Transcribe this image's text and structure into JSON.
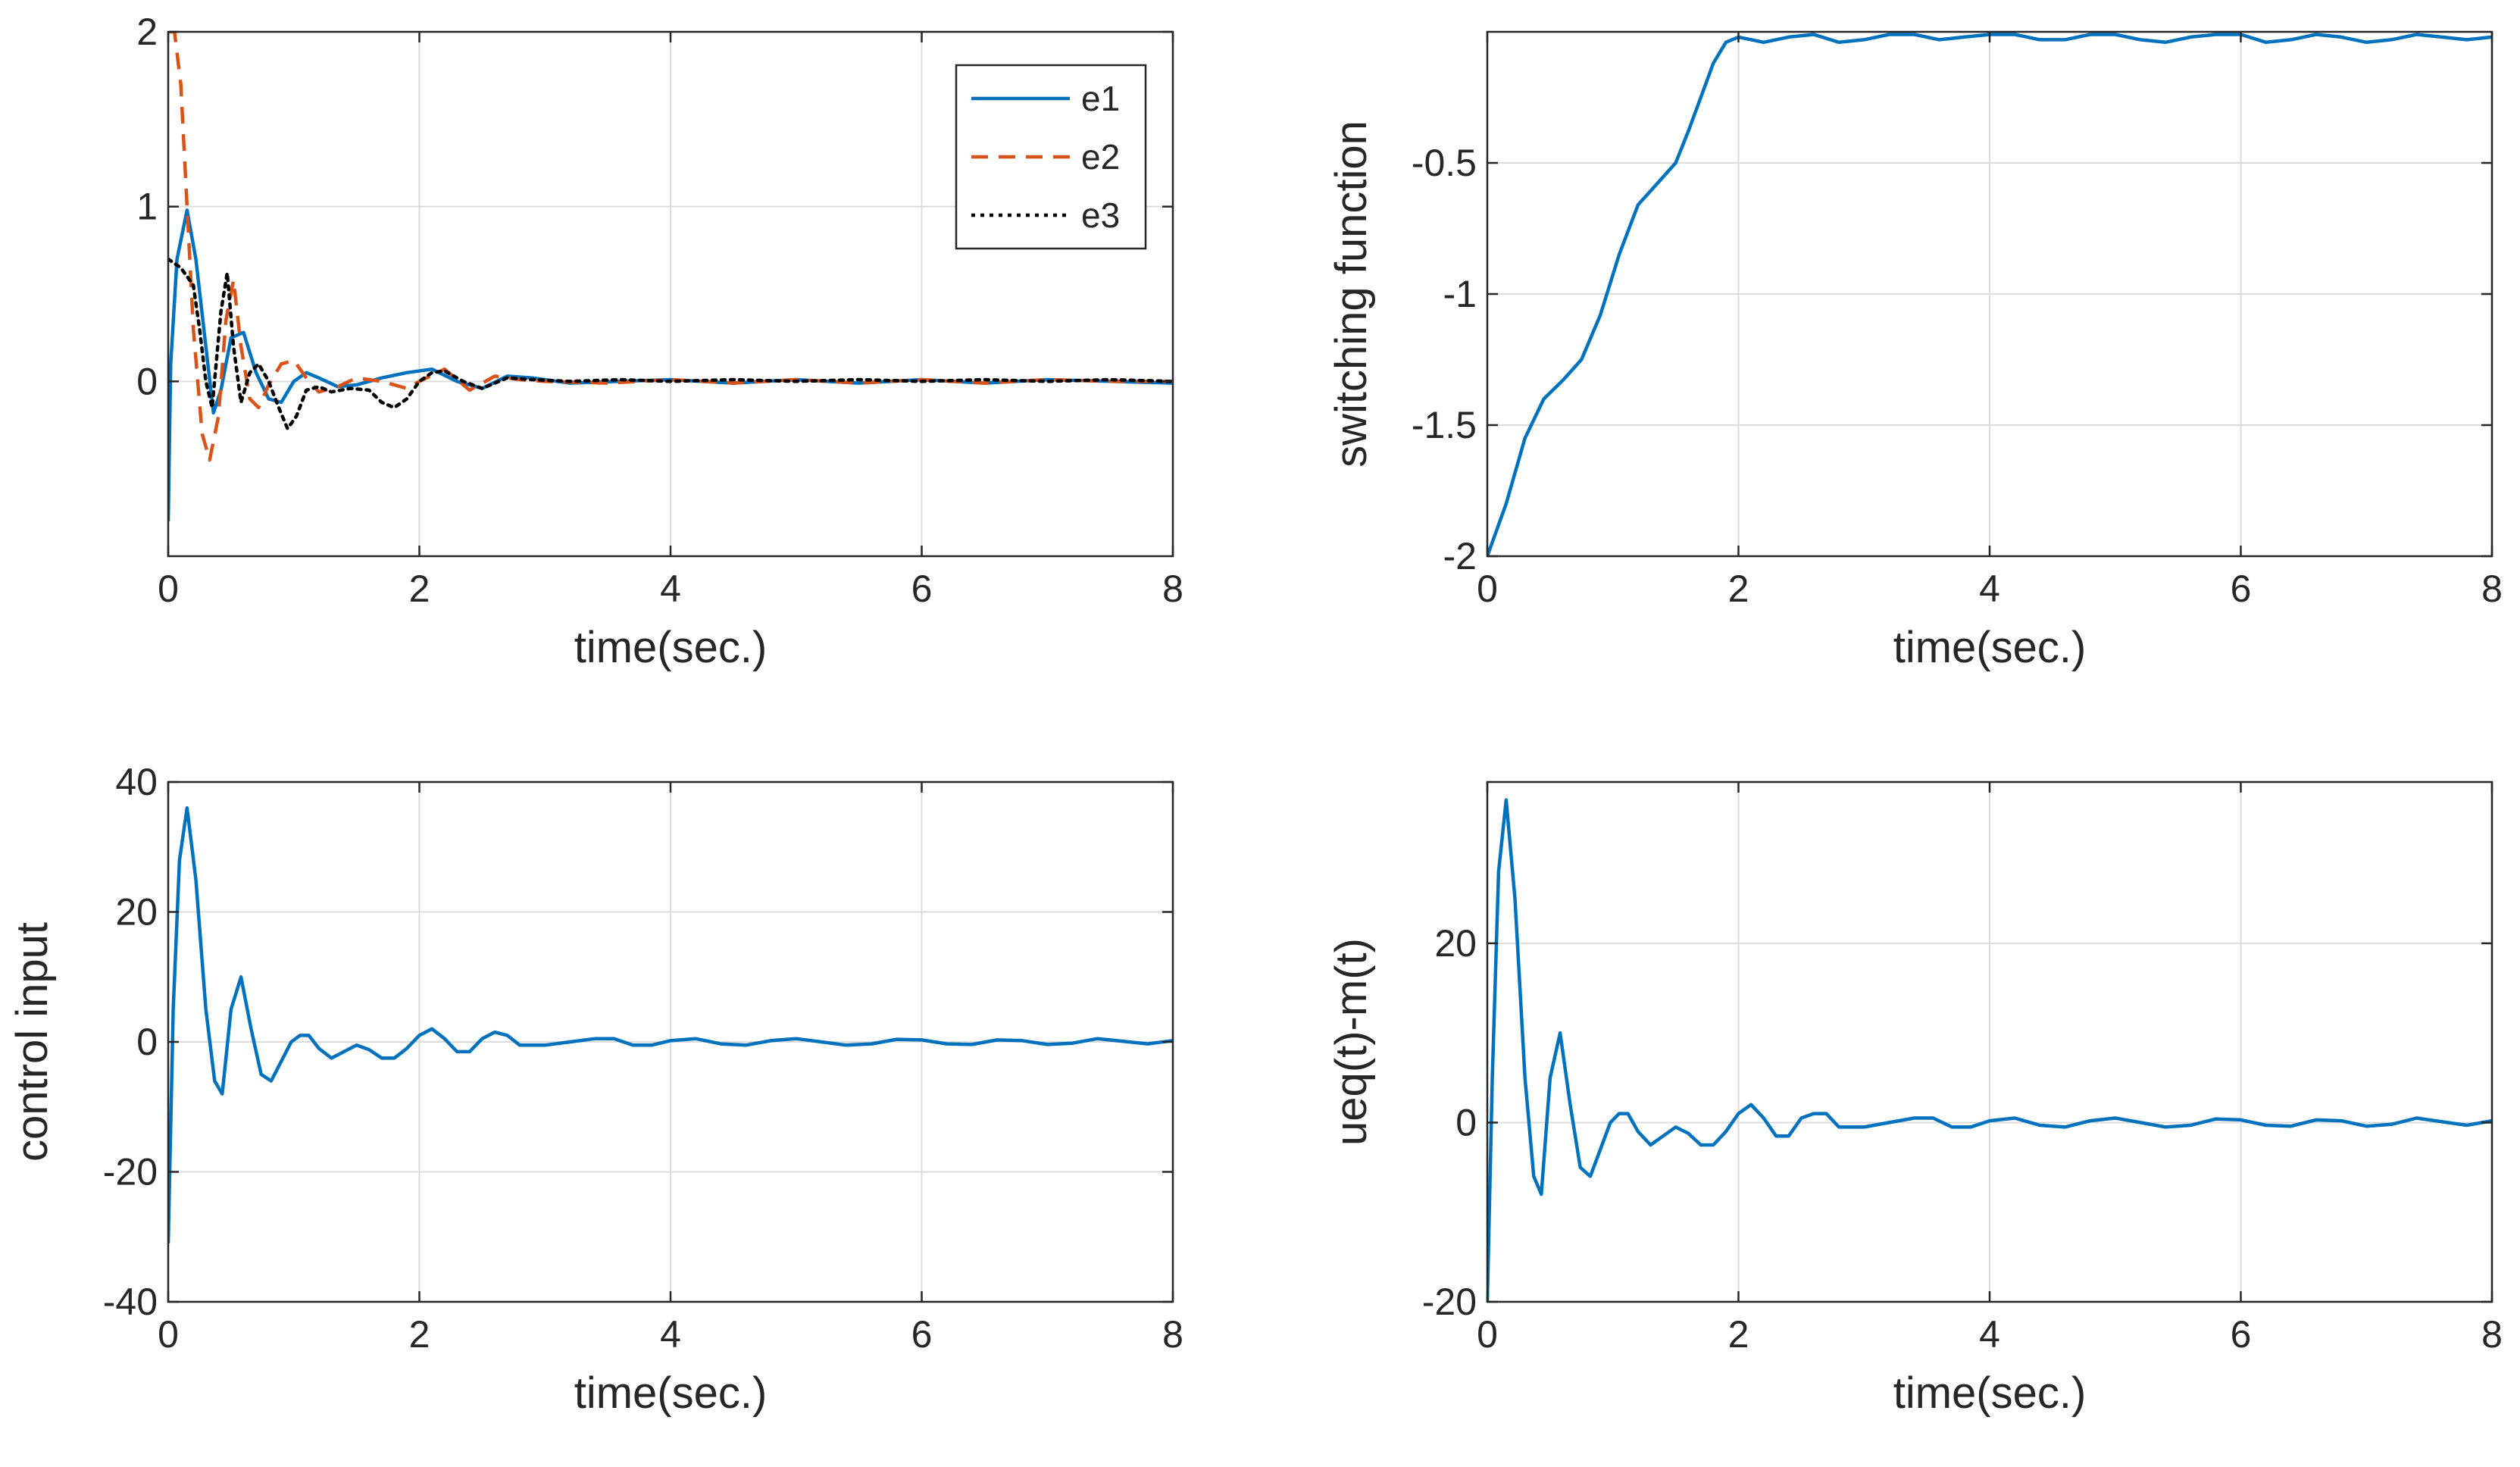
{
  "chart_data": [
    {
      "id": "errors",
      "type": "line",
      "title": "",
      "xlabel": "time(sec.)",
      "ylabel": "",
      "xlim": [
        0,
        8
      ],
      "ylim": [
        -1,
        2
      ],
      "xticks": [
        0,
        2,
        4,
        6,
        8
      ],
      "yticks": [
        0,
        1,
        2
      ],
      "xtick_labels": [
        "0",
        "2",
        "4",
        "6",
        "8"
      ],
      "ytick_labels": [
        "0",
        "1",
        "2"
      ],
      "grid": true,
      "legend": "top-right",
      "series": [
        {
          "name": "e1",
          "color": "#0072BD",
          "style": "solid",
          "x": [
            0,
            0.02,
            0.07,
            0.15,
            0.22,
            0.3,
            0.36,
            0.42,
            0.5,
            0.6,
            0.7,
            0.8,
            0.9,
            1.0,
            1.1,
            1.2,
            1.35,
            1.5,
            1.7,
            1.9,
            2.1,
            2.3,
            2.5,
            2.7,
            2.9,
            3.2,
            3.6,
            4.0,
            4.5,
            5.0,
            5.5,
            6.0,
            6.5,
            7.0,
            7.5,
            8.0
          ],
          "y": [
            -0.8,
            0.1,
            0.7,
            0.98,
            0.7,
            0.2,
            -0.18,
            -0.05,
            0.25,
            0.28,
            0.05,
            -0.1,
            -0.12,
            0.0,
            0.05,
            0.02,
            -0.03,
            -0.02,
            0.02,
            0.05,
            0.07,
            0.0,
            -0.04,
            0.03,
            0.02,
            -0.01,
            0.0,
            0.01,
            -0.01,
            0.01,
            -0.01,
            0.01,
            -0.01,
            0.01,
            0.0,
            -0.01
          ]
        },
        {
          "name": "e2",
          "color": "#D95319",
          "style": "dashed",
          "x": [
            0,
            0.05,
            0.1,
            0.15,
            0.2,
            0.27,
            0.33,
            0.4,
            0.46,
            0.52,
            0.58,
            0.65,
            0.72,
            0.8,
            0.9,
            1.0,
            1.1,
            1.2,
            1.35,
            1.5,
            1.7,
            1.9,
            2.0,
            2.2,
            2.4,
            2.6,
            2.8,
            3.0,
            3.5,
            4.0,
            4.5,
            5.0,
            5.5,
            6.0,
            6.5,
            7.0,
            7.5,
            8.0
          ],
          "y": [
            2.0,
            2.0,
            1.7,
            1.0,
            0.3,
            -0.3,
            -0.45,
            -0.2,
            0.35,
            0.58,
            0.2,
            -0.1,
            -0.15,
            -0.02,
            0.1,
            0.12,
            0.02,
            -0.06,
            -0.03,
            0.02,
            0.0,
            -0.04,
            0.0,
            0.07,
            -0.05,
            0.03,
            0.01,
            0.0,
            -0.01,
            0.01,
            -0.01,
            0.01,
            -0.01,
            0.01,
            -0.01,
            0.01,
            0.0,
            0.0
          ]
        },
        {
          "name": "e3",
          "color": "#000000",
          "style": "dotted",
          "x": [
            0,
            0.1,
            0.2,
            0.25,
            0.3,
            0.35,
            0.42,
            0.47,
            0.52,
            0.58,
            0.65,
            0.72,
            0.8,
            0.88,
            0.95,
            1.02,
            1.1,
            1.2,
            1.3,
            1.45,
            1.6,
            1.7,
            1.8,
            1.9,
            2.0,
            2.1,
            2.2,
            2.35,
            2.5,
            2.7,
            2.9,
            3.2,
            3.6,
            4.0,
            4.5,
            5.0,
            5.5,
            6.0,
            6.5,
            7.0,
            7.5,
            8.0
          ],
          "y": [
            0.7,
            0.65,
            0.55,
            0.3,
            0.0,
            -0.15,
            0.4,
            0.62,
            0.2,
            -0.12,
            0.05,
            0.1,
            0.0,
            -0.15,
            -0.27,
            -0.2,
            -0.05,
            -0.03,
            -0.06,
            -0.04,
            -0.05,
            -0.12,
            -0.15,
            -0.1,
            0.0,
            0.05,
            0.06,
            0.0,
            -0.04,
            0.02,
            0.01,
            0.0,
            0.01,
            0.0,
            0.01,
            0.0,
            0.01,
            0.0,
            0.01,
            0.0,
            0.01,
            0.0
          ]
        }
      ]
    },
    {
      "id": "switching",
      "type": "line",
      "title": "",
      "xlabel": "time(sec.)",
      "ylabel": "switching function",
      "xlim": [
        0,
        8
      ],
      "ylim": [
        -2,
        0
      ],
      "xticks": [
        0,
        2,
        4,
        6,
        8
      ],
      "yticks": [
        -2,
        -1.5,
        -1,
        -0.5
      ],
      "xtick_labels": [
        "0",
        "2",
        "4",
        "6",
        "8"
      ],
      "ytick_labels": [
        "-2",
        "-1.5",
        "-1",
        "-0.5"
      ],
      "grid": true,
      "series": [
        {
          "name": "switching function",
          "color": "#0072BD",
          "style": "solid",
          "x": [
            0,
            0.15,
            0.3,
            0.45,
            0.6,
            0.75,
            0.9,
            1.05,
            1.2,
            1.35,
            1.5,
            1.6,
            1.7,
            1.8,
            1.9,
            2.0,
            2.2,
            2.4,
            2.6,
            2.8,
            3.0,
            3.2,
            3.4,
            3.6,
            3.8,
            4.0,
            4.2,
            4.4,
            4.6,
            4.8,
            5.0,
            5.2,
            5.4,
            5.6,
            5.8,
            6.0,
            6.2,
            6.4,
            6.6,
            6.8,
            7.0,
            7.2,
            7.4,
            7.6,
            7.8,
            8.0
          ],
          "y": [
            -2.0,
            -1.8,
            -1.55,
            -1.4,
            -1.33,
            -1.25,
            -1.08,
            -0.85,
            -0.66,
            -0.58,
            -0.5,
            -0.38,
            -0.25,
            -0.12,
            -0.04,
            -0.02,
            -0.04,
            -0.02,
            -0.01,
            -0.04,
            -0.03,
            -0.01,
            -0.01,
            -0.03,
            -0.02,
            -0.01,
            -0.01,
            -0.03,
            -0.03,
            -0.01,
            -0.01,
            -0.03,
            -0.04,
            -0.02,
            -0.01,
            -0.01,
            -0.04,
            -0.03,
            -0.01,
            -0.02,
            -0.04,
            -0.03,
            -0.01,
            -0.02,
            -0.03,
            -0.02
          ]
        }
      ]
    },
    {
      "id": "control",
      "type": "line",
      "title": "",
      "xlabel": "time(sec.)",
      "ylabel": "control input",
      "xlim": [
        0,
        8
      ],
      "ylim": [
        -40,
        40
      ],
      "xticks": [
        0,
        2,
        4,
        6,
        8
      ],
      "yticks": [
        -40,
        -20,
        0,
        20,
        40
      ],
      "xtick_labels": [
        "0",
        "2",
        "4",
        "6",
        "8"
      ],
      "ytick_labels": [
        "-40",
        "-20",
        "0",
        "20",
        "40"
      ],
      "grid": true,
      "series": [
        {
          "name": "control input",
          "color": "#0072BD",
          "style": "solid",
          "x": [
            0,
            0.04,
            0.09,
            0.15,
            0.22,
            0.3,
            0.37,
            0.43,
            0.5,
            0.58,
            0.66,
            0.74,
            0.82,
            0.9,
            0.98,
            1.05,
            1.12,
            1.2,
            1.3,
            1.4,
            1.5,
            1.6,
            1.7,
            1.8,
            1.9,
            2.0,
            2.1,
            2.2,
            2.3,
            2.4,
            2.5,
            2.6,
            2.7,
            2.8,
            2.9,
            3.0,
            3.2,
            3.4,
            3.55,
            3.7,
            3.85,
            4.0,
            4.2,
            4.4,
            4.6,
            4.8,
            5.0,
            5.2,
            5.4,
            5.6,
            5.8,
            6.0,
            6.2,
            6.4,
            6.6,
            6.8,
            7.0,
            7.2,
            7.4,
            7.6,
            7.8,
            8.0
          ],
          "y": [
            -31,
            5,
            28,
            36,
            25,
            5,
            -6,
            -8,
            5,
            10,
            2,
            -5,
            -6,
            -3,
            0,
            1,
            1,
            -1,
            -2.5,
            -1.5,
            -0.5,
            -1.2,
            -2.5,
            -2.5,
            -1,
            1,
            2,
            0.5,
            -1.5,
            -1.5,
            0.5,
            1.5,
            1,
            -0.5,
            -0.5,
            -0.5,
            0,
            0.5,
            0.5,
            -0.5,
            -0.5,
            0.2,
            0.5,
            -0.3,
            -0.5,
            0.2,
            0.5,
            0,
            -0.5,
            -0.3,
            0.4,
            0.3,
            -0.3,
            -0.4,
            0.3,
            0.2,
            -0.4,
            -0.2,
            0.5,
            0.1,
            -0.3,
            0.2
          ]
        }
      ]
    },
    {
      "id": "ueq",
      "type": "line",
      "title": "",
      "xlabel": "time(sec.)",
      "ylabel": "ueq(t)-m(t)",
      "xlim": [
        0,
        8
      ],
      "ylim": [
        -20,
        38
      ],
      "xticks": [
        0,
        2,
        4,
        6,
        8
      ],
      "yticks": [
        -20,
        0,
        20
      ],
      "xtick_labels": [
        "0",
        "2",
        "4",
        "6",
        "8"
      ],
      "ytick_labels": [
        "-20",
        "0",
        "20"
      ],
      "grid": true,
      "series": [
        {
          "name": "ueq(t)-m(t)",
          "color": "#0072BD",
          "style": "solid",
          "x": [
            0,
            0.04,
            0.09,
            0.15,
            0.22,
            0.3,
            0.37,
            0.43,
            0.5,
            0.58,
            0.66,
            0.74,
            0.82,
            0.9,
            0.98,
            1.05,
            1.12,
            1.2,
            1.3,
            1.4,
            1.5,
            1.6,
            1.7,
            1.8,
            1.9,
            2.0,
            2.1,
            2.2,
            2.3,
            2.4,
            2.5,
            2.6,
            2.7,
            2.8,
            2.9,
            3.0,
            3.2,
            3.4,
            3.55,
            3.7,
            3.85,
            4.0,
            4.2,
            4.4,
            4.6,
            4.8,
            5.0,
            5.2,
            5.4,
            5.6,
            5.8,
            6.0,
            6.2,
            6.4,
            6.6,
            6.8,
            7.0,
            7.2,
            7.4,
            7.6,
            7.8,
            8.0
          ],
          "y": [
            -20,
            5,
            28,
            36,
            25,
            5,
            -6,
            -8,
            5,
            10,
            2,
            -5,
            -6,
            -3,
            0,
            1,
            1,
            -1,
            -2.5,
            -1.5,
            -0.5,
            -1.2,
            -2.5,
            -2.5,
            -1,
            1,
            2,
            0.5,
            -1.5,
            -1.5,
            0.5,
            1,
            1,
            -0.5,
            -0.5,
            -0.5,
            0,
            0.5,
            0.5,
            -0.5,
            -0.5,
            0.2,
            0.5,
            -0.3,
            -0.5,
            0.2,
            0.5,
            0,
            -0.5,
            -0.3,
            0.4,
            0.3,
            -0.3,
            -0.4,
            0.3,
            0.2,
            -0.4,
            -0.2,
            0.5,
            0.1,
            -0.3,
            0.2
          ]
        }
      ]
    }
  ]
}
